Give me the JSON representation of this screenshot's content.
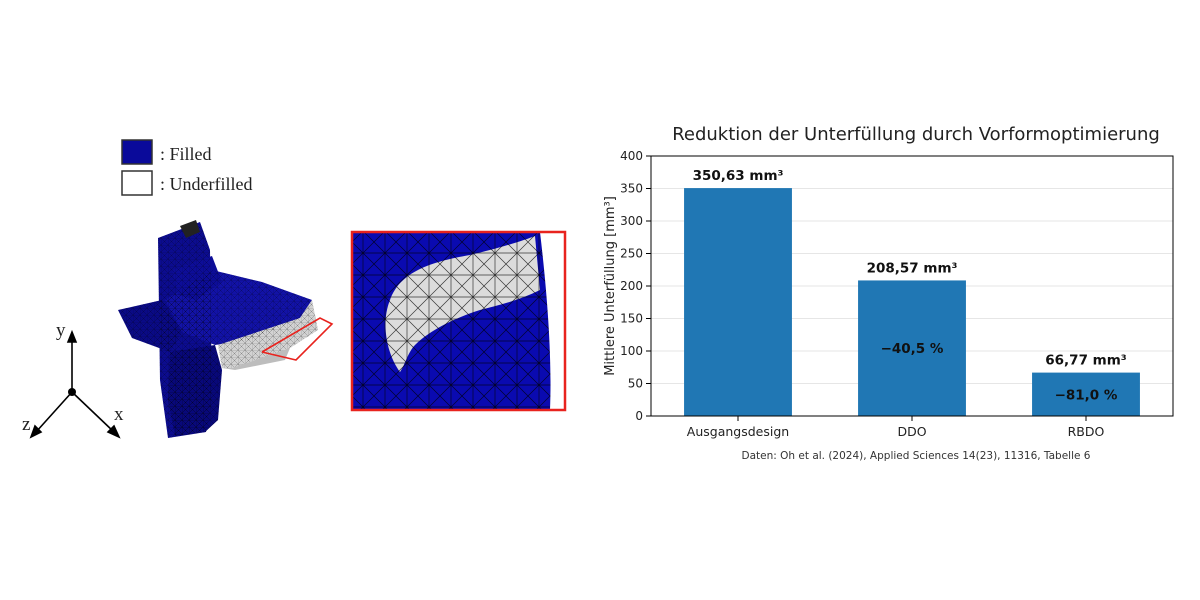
{
  "legend": {
    "filled_label": ": Filled",
    "underfilled_label": ": Underfilled",
    "filled_color": "#0a0a9a",
    "underfilled_color": "#ffffff"
  },
  "axes_triad": {
    "y": "y",
    "z": "z",
    "x": "x"
  },
  "zoom_frame_color": "#e8231e",
  "chart_data": {
    "type": "bar",
    "title": "Reduktion der Unterfüllung durch Vorformoptimierung",
    "xlabel": "",
    "ylabel": "Mittlere Unterfüllung [mm³]",
    "categories": [
      "Ausgangsdesign",
      "DDO",
      "RBDO"
    ],
    "values": [
      350.63,
      208.57,
      66.77
    ],
    "value_labels": [
      "350,63 mm³",
      "208,57 mm³",
      "66,77 mm³"
    ],
    "inner_labels": [
      "",
      "−40,5 %",
      "−81,0 %"
    ],
    "ylim": [
      0,
      400
    ],
    "yticks": [
      0,
      50,
      100,
      150,
      200,
      250,
      300,
      350,
      400
    ],
    "grid": true,
    "bar_color": "#2077b4",
    "source": "Daten: Oh et al. (2024), Applied Sciences 14(23), 11316, Tabelle 6"
  }
}
